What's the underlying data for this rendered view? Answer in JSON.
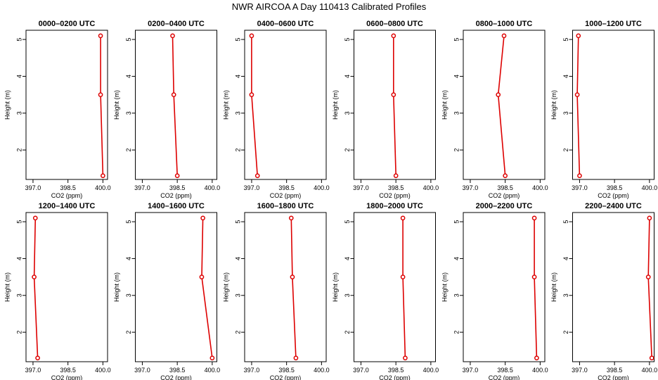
{
  "title": "NWR AIRCOA A  Day 110413  Calibrated Profiles",
  "chart_data": [
    {
      "type": "line",
      "title": "0000–0200 UTC",
      "xlabel": "CO2 (ppm)",
      "ylabel": "Height (m)",
      "xticks": [
        "397.0",
        "398.5",
        "400.0"
      ],
      "yticks": [
        "2",
        "3",
        "4",
        "5"
      ],
      "x": [
        399.9,
        399.9,
        400.0
      ],
      "y": [
        5.1,
        3.5,
        1.3
      ],
      "color": "#dd0000"
    },
    {
      "type": "line",
      "title": "0200–0400 UTC",
      "xlabel": "CO2 (ppm)",
      "ylabel": "Height (m)",
      "xticks": [
        "397.0",
        "398.5",
        "400.0"
      ],
      "yticks": [
        "2",
        "3",
        "4",
        "5"
      ],
      "x": [
        398.3,
        398.35,
        398.5
      ],
      "y": [
        5.1,
        3.5,
        1.3
      ],
      "color": "#dd0000"
    },
    {
      "type": "line",
      "title": "0400–0600 UTC",
      "xlabel": "CO2 (ppm)",
      "ylabel": "Height (m)",
      "xticks": [
        "397.0",
        "398.5",
        "400.0"
      ],
      "yticks": [
        "2",
        "3",
        "4",
        "5"
      ],
      "x": [
        397.0,
        397.0,
        397.25
      ],
      "y": [
        5.1,
        3.5,
        1.3
      ],
      "color": "#dd0000"
    },
    {
      "type": "line",
      "title": "0600–0800 UTC",
      "xlabel": "CO2 (ppm)",
      "ylabel": "Height (m)",
      "xticks": [
        "397.0",
        "398.5",
        "400.0"
      ],
      "yticks": [
        "2",
        "3",
        "4",
        "5"
      ],
      "x": [
        398.4,
        398.4,
        398.5
      ],
      "y": [
        5.1,
        3.5,
        1.3
      ],
      "color": "#dd0000"
    },
    {
      "type": "line",
      "title": "0800–1000 UTC",
      "xlabel": "CO2 (ppm)",
      "ylabel": "Height (m)",
      "xticks": [
        "397.0",
        "398.5",
        "400.0"
      ],
      "yticks": [
        "2",
        "3",
        "4",
        "5"
      ],
      "x": [
        398.45,
        398.2,
        398.5
      ],
      "y": [
        5.1,
        3.5,
        1.3
      ],
      "color": "#dd0000"
    },
    {
      "type": "line",
      "title": "1000–1200 UTC",
      "xlabel": "CO2 (ppm)",
      "ylabel": "Height (m)",
      "xticks": [
        "397.0",
        "398.5",
        "400.0"
      ],
      "yticks": [
        "2",
        "3",
        "4",
        "5"
      ],
      "x": [
        396.95,
        396.9,
        397.0
      ],
      "y": [
        5.1,
        3.5,
        1.3
      ],
      "color": "#dd0000"
    },
    {
      "type": "line",
      "title": "1200–1400 UTC",
      "xlabel": "CO2 (ppm)",
      "ylabel": "Height (m)",
      "xticks": [
        "397.0",
        "398.5",
        "400.0"
      ],
      "yticks": [
        "2",
        "3",
        "4",
        "5"
      ],
      "x": [
        397.1,
        397.05,
        397.2
      ],
      "y": [
        5.1,
        3.5,
        1.3
      ],
      "color": "#dd0000"
    },
    {
      "type": "line",
      "title": "1400–1600 UTC",
      "xlabel": "CO2 (ppm)",
      "ylabel": "Height (m)",
      "xticks": [
        "397.0",
        "398.5",
        "400.0"
      ],
      "yticks": [
        "2",
        "3",
        "4",
        "5"
      ],
      "x": [
        399.6,
        399.55,
        400.0
      ],
      "y": [
        5.1,
        3.5,
        1.3
      ],
      "color": "#dd0000"
    },
    {
      "type": "line",
      "title": "1600–1800 UTC",
      "xlabel": "CO2 (ppm)",
      "ylabel": "Height (m)",
      "xticks": [
        "397.0",
        "398.5",
        "400.0"
      ],
      "yticks": [
        "2",
        "3",
        "4",
        "5"
      ],
      "x": [
        398.7,
        398.75,
        398.9
      ],
      "y": [
        5.1,
        3.5,
        1.3
      ],
      "color": "#dd0000"
    },
    {
      "type": "line",
      "title": "1800–2000 UTC",
      "xlabel": "CO2 (ppm)",
      "ylabel": "Height (m)",
      "xticks": [
        "397.0",
        "398.5",
        "400.0"
      ],
      "yticks": [
        "2",
        "3",
        "4",
        "5"
      ],
      "x": [
        398.8,
        398.8,
        398.9
      ],
      "y": [
        5.1,
        3.5,
        1.3
      ],
      "color": "#dd0000"
    },
    {
      "type": "line",
      "title": "2000–2200 UTC",
      "xlabel": "CO2 (ppm)",
      "ylabel": "Height (m)",
      "xticks": [
        "397.0",
        "398.5",
        "400.0"
      ],
      "yticks": [
        "2",
        "3",
        "4",
        "5"
      ],
      "x": [
        399.75,
        399.75,
        399.85
      ],
      "y": [
        5.1,
        3.5,
        1.3
      ],
      "color": "#dd0000"
    },
    {
      "type": "line",
      "title": "2200–2400 UTC",
      "xlabel": "CO2 (ppm)",
      "ylabel": "Height (m)",
      "xticks": [
        "397.0",
        "398.5",
        "400.0"
      ],
      "yticks": [
        "2",
        "3",
        "4",
        "5"
      ],
      "x": [
        400.0,
        399.95,
        400.1
      ],
      "y": [
        5.1,
        3.5,
        1.3
      ],
      "color": "#dd0000"
    }
  ]
}
